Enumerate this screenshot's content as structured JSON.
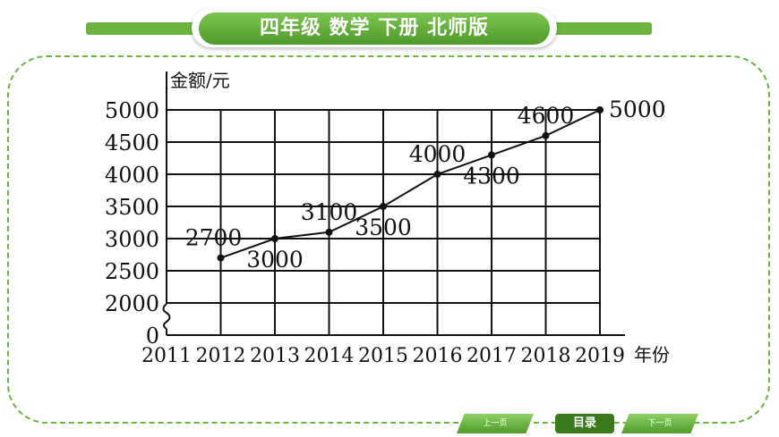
{
  "header": {
    "title": "四年级  数学  下册  北师版"
  },
  "chart_data": {
    "type": "line",
    "ylabel": "金额/元",
    "xlabel": "年份",
    "x_ticks": [
      "2011",
      "2012",
      "2013",
      "2014",
      "2015",
      "2016",
      "2017",
      "2018",
      "2019"
    ],
    "y_ticks": [
      "0",
      "2000",
      "2500",
      "3000",
      "3500",
      "4000",
      "4500",
      "5000"
    ],
    "ylim": [
      2000,
      5000
    ],
    "y_axis_break": true,
    "grid": true,
    "series": [
      {
        "x": [
          "2012",
          "2013",
          "2014",
          "2015",
          "2016",
          "2017",
          "2018",
          "2019"
        ],
        "values": [
          2700,
          3000,
          3100,
          3500,
          4000,
          4300,
          4600,
          5000
        ]
      }
    ],
    "data_labels": [
      "2700",
      "3000",
      "3100",
      "3500",
      "4000",
      "4300",
      "4600",
      "5000"
    ]
  },
  "nav": {
    "prev_label": "上一页",
    "home_label": "目录",
    "next_label": "下一页"
  }
}
